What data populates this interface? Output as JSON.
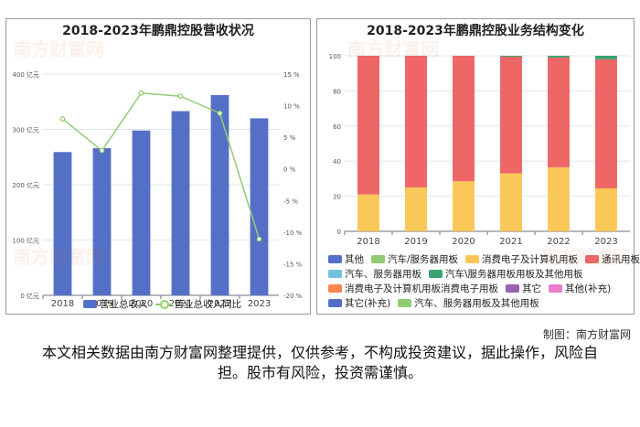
{
  "left_chart": {
    "title": "2018-2023年鹏鼎控股营收状况",
    "legend": {
      "bar": "营业总收入",
      "line": "营业总收入同比"
    },
    "colors": {
      "bar": "#5470c6",
      "line": "#91cc75"
    },
    "chart_data": {
      "type": "bar",
      "categories": [
        "2018",
        "2019",
        "2020",
        "2021",
        "2022",
        "2023"
      ],
      "series": [
        {
          "name": "营业总收入",
          "axis": "left",
          "values": [
            259,
            266,
            298,
            333,
            362,
            320
          ]
        },
        {
          "name": "营业总收入同比",
          "type": "line",
          "axis": "right",
          "values": [
            7.9,
            2.9,
            12.0,
            11.5,
            8.8,
            -11.1
          ]
        }
      ],
      "ylim_left": [
        0,
        400
      ],
      "yticks_left": [
        "0 亿元",
        "100 亿元",
        "200 亿元",
        "300 亿元",
        "400 亿元"
      ],
      "ylim_right": [
        -20,
        15
      ],
      "yticks_right": [
        "-20 %",
        "-15 %",
        "-10 %",
        "-5 %",
        "0 %",
        "5 %",
        "10 %",
        "15 %"
      ],
      "grid": true,
      "legend_position": "bottom"
    }
  },
  "right_chart": {
    "title": "2018-2023年鹏鼎控股业务结构变化",
    "chart_data": {
      "type": "bar",
      "stacked": true,
      "categories": [
        "2018",
        "2019",
        "2020",
        "2021",
        "2022",
        "2023"
      ],
      "series": [
        {
          "name": "其他",
          "color": "#5470c6",
          "values": [
            0,
            0,
            0,
            0,
            0,
            0
          ]
        },
        {
          "name": "汽车/服务器用板",
          "color": "#91cc75",
          "values": [
            0,
            0,
            0,
            0,
            0,
            0
          ]
        },
        {
          "name": "消费电子及计算机用板",
          "color": "#fac858",
          "values": [
            21,
            25,
            28.5,
            33,
            36.5,
            24.5
          ]
        },
        {
          "name": "通讯用板",
          "color": "#ee6666",
          "values": [
            79,
            75,
            71.5,
            66.5,
            62.5,
            73.5
          ]
        },
        {
          "name": "汽车、服务器用板",
          "color": "#73c0de",
          "values": [
            0,
            0,
            0,
            0,
            0,
            0
          ]
        },
        {
          "name": "汽车\\服务器用板用板及其他用板",
          "color": "#3ba272",
          "values": [
            0,
            0,
            0,
            0.5,
            1,
            2
          ]
        },
        {
          "name": "消费电子及计算机用板消费电子用板",
          "color": "#fc8452",
          "values": [
            0,
            0,
            0,
            0,
            0,
            0
          ]
        },
        {
          "name": "其它",
          "color": "#9a60b4",
          "values": [
            0,
            0,
            0,
            0,
            0,
            0
          ]
        },
        {
          "name": "其他(补充)",
          "color": "#ea7ccc",
          "values": [
            0,
            0,
            0,
            0,
            0,
            0
          ]
        },
        {
          "name": "其它(补充)",
          "color": "#5470c6",
          "values": [
            0,
            0,
            0,
            0,
            0,
            0
          ]
        },
        {
          "name": "汽车、服务器用板及其他用板",
          "color": "#91cc75",
          "values": [
            0,
            0,
            0,
            0,
            0,
            0
          ]
        }
      ],
      "ylim": [
        0,
        100
      ],
      "yticks": [
        "0",
        "20",
        "40",
        "60",
        "80",
        "100"
      ],
      "grid": true,
      "legend_position": "bottom"
    }
  },
  "footer": {
    "credit": "制图：南方财富网",
    "disclaimer": "本文相关数据由南方财富网整理提供，仅供参考，不构成投资建议，据此操作，风险自担。股市有风险，投资需谨慎。"
  },
  "watermark": {
    "text": "南方财富网",
    "subtext": "southmoney.com"
  }
}
